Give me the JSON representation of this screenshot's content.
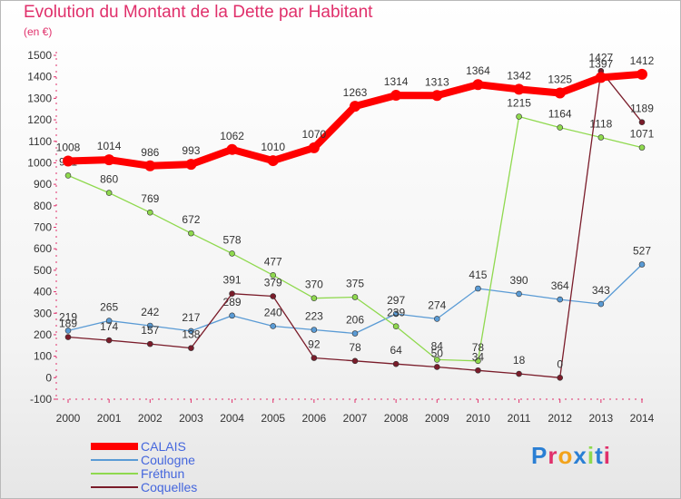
{
  "title": "Evolution du Montant de la Dette par Habitant",
  "unit_label": "(en €)",
  "logo_text": "Proxiti",
  "chart_data": {
    "type": "line",
    "title": "Evolution du Montant de la Dette par Habitant",
    "ylabel": "(en €)",
    "xlabel": "",
    "x": [
      "2000",
      "2001",
      "2002",
      "2003",
      "2004",
      "2005",
      "2006",
      "2007",
      "2008",
      "2009",
      "2010",
      "2011",
      "2012",
      "2013",
      "2014"
    ],
    "ylim": [
      -100,
      1500
    ],
    "ytick_step": 100,
    "grid": false,
    "legend_position": "bottom-left",
    "series": [
      {
        "name": "CALAIS",
        "color": "#ff0000",
        "values": [
          1008,
          1014,
          986,
          993,
          1062,
          1010,
          1070,
          1263,
          1314,
          1313,
          1364,
          1342,
          1325,
          1397,
          1412
        ]
      },
      {
        "name": "Coulogne",
        "color": "#5a9bd5",
        "values": [
          219,
          265,
          242,
          217,
          289,
          240,
          223,
          206,
          297,
          274,
          415,
          390,
          364,
          343,
          527
        ]
      },
      {
        "name": "Fréthun",
        "color": "#8fd94e",
        "values": [
          941,
          860,
          769,
          672,
          578,
          477,
          370,
          375,
          239,
          84,
          78,
          1215,
          1164,
          1118,
          1071
        ]
      },
      {
        "name": "Coquelles",
        "color": "#7a1c2a",
        "values": [
          189,
          174,
          157,
          138,
          391,
          379,
          92,
          78,
          64,
          50,
          34,
          18,
          0,
          1427,
          1189
        ]
      }
    ]
  }
}
